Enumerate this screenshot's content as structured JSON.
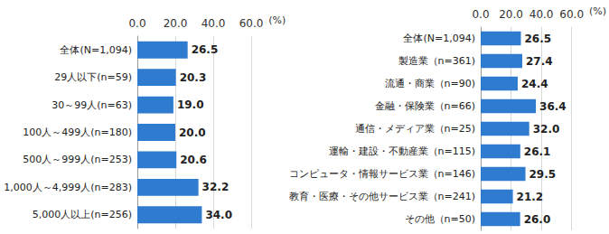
{
  "chart_data": [
    {
      "type": "bar",
      "orientation": "horizontal",
      "categories": [
        "全体(N=1,094)",
        "29人以下(n=59)",
        "30～99人(n=63)",
        "100人～499人(n=180)",
        "500人～999人(n=253)",
        "1,000人～4,999人(n=283)",
        "5,000人以上(n=256)"
      ],
      "values": [
        26.5,
        20.3,
        19.0,
        20.0,
        20.6,
        32.2,
        34.0
      ],
      "value_labels": [
        "26.5",
        "20.3",
        "19.0",
        "20.0",
        "20.6",
        "32.2",
        "34.0"
      ],
      "color": "#2e7bcf",
      "xlabel": "(%)",
      "xlim": [
        0,
        60
      ],
      "xticks": [
        {
          "value": 0,
          "label": "0.0"
        },
        {
          "value": 20,
          "label": "20.0"
        },
        {
          "value": 40,
          "label": "40.0"
        },
        {
          "value": 60,
          "label": "60.0"
        }
      ],
      "grid": true,
      "data_labels": true
    },
    {
      "type": "bar",
      "orientation": "horizontal",
      "categories": [
        "全体(N=1,094)",
        "製造業（n=361)",
        "流通・商業（n=90)",
        "金融・保険業（n=66)",
        "通信・メディア業（n=25)",
        "運輸・建設・不動産業（n=115)",
        "コンピュータ・情報サービス業（n=146)",
        "教育・医療・その他サービス業（n=241)",
        "その他（n=50)"
      ],
      "values": [
        26.5,
        27.4,
        24.4,
        36.4,
        32.0,
        26.1,
        29.5,
        21.2,
        26.0
      ],
      "value_labels": [
        "26.5",
        "27.4",
        "24.4",
        "36.4",
        "32.0",
        "26.1",
        "29.5",
        "21.2",
        "26.0"
      ],
      "color": "#2e7bcf",
      "xlabel": "(%)",
      "xlim": [
        0,
        60
      ],
      "xticks": [
        {
          "value": 0,
          "label": "0.0"
        },
        {
          "value": 20,
          "label": "20.0"
        },
        {
          "value": 40,
          "label": "40.0"
        },
        {
          "value": 60,
          "label": "60.0"
        }
      ],
      "grid": true,
      "data_labels": true
    }
  ]
}
